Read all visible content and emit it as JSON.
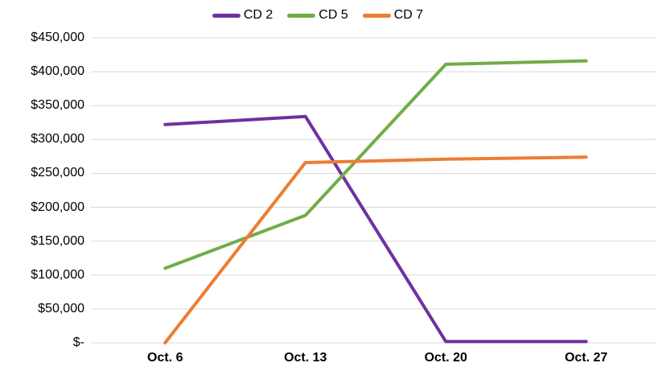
{
  "chart_data": {
    "type": "line",
    "title": "",
    "categories": [
      "Oct. 6",
      "Oct. 13",
      "Oct. 20",
      "Oct. 27"
    ],
    "series": [
      {
        "name": "CD 2",
        "color": "#7030A0",
        "values": [
          322000,
          334000,
          2000,
          2000
        ]
      },
      {
        "name": "CD 5",
        "color": "#70AD47",
        "values": [
          110000,
          188000,
          411000,
          416000
        ]
      },
      {
        "name": "CD 7",
        "color": "#ED7D31",
        "values": [
          0,
          266000,
          271000,
          274000
        ]
      }
    ],
    "y_axis": {
      "min": 0,
      "max": 450000,
      "step": 50000,
      "tick_labels": [
        "$-",
        "$50,000",
        "$100,000",
        "$150,000",
        "$200,000",
        "$250,000",
        "$300,000",
        "$350,000",
        "$400,000",
        "$450,000"
      ]
    },
    "x_axis": {
      "tick_labels": [
        "Oct. 6",
        "Oct. 13",
        "Oct. 20",
        "Oct. 27"
      ]
    },
    "legend": {
      "position": "top",
      "entries": [
        "CD 2",
        "CD 5",
        "CD 7"
      ]
    },
    "grid": true,
    "colors": {
      "gridline": "#D9D9D9",
      "axis_text": "#000000",
      "background": "#FFFFFF"
    }
  }
}
